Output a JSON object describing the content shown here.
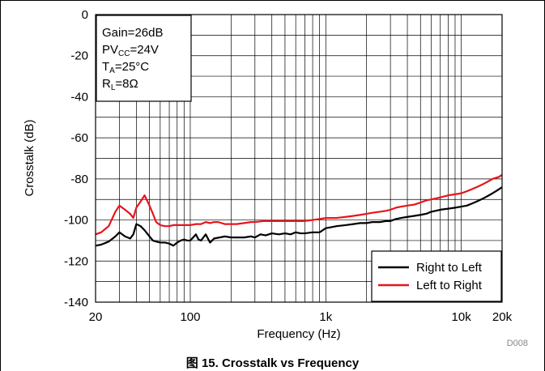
{
  "figure": {
    "caption": "图 15. Crosstalk vs Frequency",
    "code": "D008"
  },
  "conditions": {
    "gain": "Gain=26dB",
    "pvcc": {
      "prefix": "PV",
      "sub": "CC",
      "suffix": "=24V"
    },
    "ta": {
      "prefix": "T",
      "sub": "A",
      "suffix": "=25°C"
    },
    "rl": {
      "prefix": "R",
      "sub": "L",
      "suffix": "=8Ω"
    }
  },
  "chart_data": {
    "type": "line",
    "title": "",
    "xlabel": "Frequency (Hz)",
    "ylabel": "Crosstalk (dB)",
    "xscale": "log",
    "xlim": [
      20,
      20000
    ],
    "ylim": [
      -140,
      0
    ],
    "x_ticks": [
      20,
      100,
      1000,
      10000,
      20000
    ],
    "x_tick_labels": [
      "20",
      "100",
      "1k",
      "10k",
      "20k"
    ],
    "y_ticks": [
      0,
      -20,
      -40,
      -60,
      -80,
      -100,
      -120,
      -140
    ],
    "y_tick_labels": [
      "0",
      "-20",
      "-40",
      "-60",
      "-80",
      "-100",
      "-120",
      "-140"
    ],
    "grid": true,
    "legend_position": "bottom-right",
    "series": [
      {
        "name": "Right to Left",
        "color": "#000000",
        "points": [
          [
            20,
            -112.5
          ],
          [
            22,
            -112
          ],
          [
            25,
            -110.5
          ],
          [
            28,
            -108
          ],
          [
            30,
            -106
          ],
          [
            33,
            -108
          ],
          [
            36,
            -109
          ],
          [
            38,
            -107
          ],
          [
            40,
            -102
          ],
          [
            43,
            -103
          ],
          [
            46,
            -105
          ],
          [
            50,
            -108
          ],
          [
            53,
            -110
          ],
          [
            56,
            -110.5
          ],
          [
            60,
            -111
          ],
          [
            65,
            -111
          ],
          [
            70,
            -111.5
          ],
          [
            75,
            -112.5
          ],
          [
            80,
            -111
          ],
          [
            85,
            -110
          ],
          [
            90,
            -109.5
          ],
          [
            95,
            -110
          ],
          [
            100,
            -110
          ],
          [
            105,
            -108.5
          ],
          [
            110,
            -107
          ],
          [
            115,
            -109.5
          ],
          [
            120,
            -110
          ],
          [
            130,
            -107
          ],
          [
            140,
            -111
          ],
          [
            150,
            -109
          ],
          [
            165,
            -108.5
          ],
          [
            180,
            -108
          ],
          [
            200,
            -108.5
          ],
          [
            220,
            -108.5
          ],
          [
            250,
            -108.5
          ],
          [
            280,
            -108
          ],
          [
            300,
            -108.5
          ],
          [
            330,
            -107
          ],
          [
            360,
            -107.5
          ],
          [
            400,
            -106.5
          ],
          [
            450,
            -107
          ],
          [
            500,
            -106.5
          ],
          [
            550,
            -107
          ],
          [
            600,
            -106
          ],
          [
            650,
            -106.5
          ],
          [
            700,
            -106.5
          ],
          [
            800,
            -106
          ],
          [
            900,
            -106
          ],
          [
            1000,
            -104
          ],
          [
            1100,
            -103.5
          ],
          [
            1200,
            -103
          ],
          [
            1400,
            -102.5
          ],
          [
            1600,
            -102
          ],
          [
            1800,
            -101.5
          ],
          [
            2000,
            -101.5
          ],
          [
            2200,
            -101
          ],
          [
            2500,
            -101
          ],
          [
            2800,
            -100.5
          ],
          [
            3000,
            -100.5
          ],
          [
            3300,
            -99.5
          ],
          [
            3600,
            -99
          ],
          [
            4000,
            -98.5
          ],
          [
            4500,
            -98
          ],
          [
            5000,
            -97.5
          ],
          [
            5500,
            -97
          ],
          [
            6000,
            -96
          ],
          [
            6500,
            -95.5
          ],
          [
            7000,
            -95
          ],
          [
            8000,
            -94.5
          ],
          [
            9000,
            -94
          ],
          [
            10000,
            -93.5
          ],
          [
            11000,
            -93
          ],
          [
            12000,
            -92
          ],
          [
            13000,
            -91
          ],
          [
            14000,
            -90
          ],
          [
            15000,
            -89
          ],
          [
            16000,
            -88
          ],
          [
            17000,
            -87
          ],
          [
            18000,
            -86
          ],
          [
            19000,
            -85
          ],
          [
            20000,
            -84
          ]
        ]
      },
      {
        "name": "Left to Right",
        "color": "#e8141c",
        "points": [
          [
            20,
            -107
          ],
          [
            22,
            -106
          ],
          [
            25,
            -103
          ],
          [
            28,
            -96
          ],
          [
            30,
            -93
          ],
          [
            33,
            -95
          ],
          [
            36,
            -97
          ],
          [
            38,
            -99
          ],
          [
            40,
            -94
          ],
          [
            43,
            -91
          ],
          [
            46,
            -88
          ],
          [
            50,
            -93
          ],
          [
            53,
            -97
          ],
          [
            56,
            -101
          ],
          [
            60,
            -102.5
          ],
          [
            65,
            -103
          ],
          [
            70,
            -103
          ],
          [
            75,
            -102.5
          ],
          [
            80,
            -102.5
          ],
          [
            90,
            -102.5
          ],
          [
            100,
            -102.5
          ],
          [
            110,
            -102
          ],
          [
            120,
            -102
          ],
          [
            130,
            -101
          ],
          [
            140,
            -101.5
          ],
          [
            150,
            -101
          ],
          [
            160,
            -101
          ],
          [
            170,
            -101.5
          ],
          [
            180,
            -102
          ],
          [
            200,
            -102
          ],
          [
            220,
            -102
          ],
          [
            250,
            -101.5
          ],
          [
            280,
            -101
          ],
          [
            300,
            -101
          ],
          [
            350,
            -100.5
          ],
          [
            400,
            -100.5
          ],
          [
            450,
            -100.5
          ],
          [
            500,
            -100.5
          ],
          [
            600,
            -100.5
          ],
          [
            700,
            -100.5
          ],
          [
            800,
            -100
          ],
          [
            900,
            -99.5
          ],
          [
            1000,
            -99
          ],
          [
            1200,
            -99
          ],
          [
            1400,
            -98.5
          ],
          [
            1600,
            -98
          ],
          [
            1800,
            -97.5
          ],
          [
            2000,
            -97
          ],
          [
            2200,
            -96.5
          ],
          [
            2500,
            -96
          ],
          [
            2800,
            -95.5
          ],
          [
            3000,
            -95
          ],
          [
            3300,
            -94
          ],
          [
            3600,
            -93.5
          ],
          [
            4000,
            -93
          ],
          [
            4500,
            -92.5
          ],
          [
            5000,
            -91.5
          ],
          [
            5500,
            -90.5
          ],
          [
            6000,
            -90
          ],
          [
            6500,
            -89.5
          ],
          [
            7000,
            -89
          ],
          [
            8000,
            -88
          ],
          [
            9000,
            -87.5
          ],
          [
            10000,
            -87
          ],
          [
            11000,
            -86
          ],
          [
            12000,
            -85
          ],
          [
            13000,
            -84
          ],
          [
            14000,
            -83
          ],
          [
            15000,
            -82
          ],
          [
            16000,
            -81
          ],
          [
            17000,
            -80
          ],
          [
            18000,
            -79.5
          ],
          [
            19000,
            -79
          ],
          [
            20000,
            -78
          ]
        ]
      }
    ]
  }
}
